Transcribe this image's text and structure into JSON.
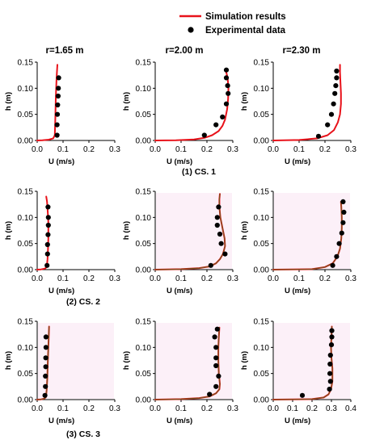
{
  "legend": {
    "simulation": "Simulation results",
    "experimental": "Experimental data"
  },
  "column_titles": [
    "r=1.65 m",
    "r=2.00 m",
    "r=2.30 m"
  ],
  "row_captions": [
    "(1) CS. 1",
    "(2) CS. 2",
    "(3) CS. 3"
  ],
  "colors": {
    "simulation": "#e8121a",
    "simulation_overlay": "#6b5a1e",
    "experimental": "#000000",
    "band": "#f9e4f2"
  },
  "chart_data": [
    {
      "type": "scatter",
      "row": 0,
      "col": 0,
      "overlay": false,
      "band": false,
      "xlabel": "U (m/s)",
      "ylabel": "h (m)",
      "xlim": [
        0,
        0.3
      ],
      "ylim": [
        0,
        0.15
      ],
      "xticks": [
        "0.0",
        "0.1",
        "0.2",
        "0.3"
      ],
      "yticks": [
        "0.00",
        "0.05",
        "0.10",
        "0.15"
      ],
      "series": [
        {
          "name": "Simulation results",
          "kind": "line",
          "x": [
            0.0,
            0.02,
            0.045,
            0.062,
            0.068,
            0.07,
            0.072,
            0.075,
            0.078
          ],
          "y": [
            0.0,
            0.0005,
            0.0015,
            0.004,
            0.01,
            0.04,
            0.08,
            0.12,
            0.145
          ]
        },
        {
          "name": "Experimental data",
          "kind": "scatter",
          "x": [
            0.083,
            0.082,
            0.081,
            0.079,
            0.078,
            0.077,
            0.077
          ],
          "y": [
            0.12,
            0.1,
            0.085,
            0.068,
            0.05,
            0.03,
            0.01
          ]
        }
      ]
    },
    {
      "type": "scatter",
      "row": 0,
      "col": 1,
      "overlay": false,
      "band": false,
      "xlabel": "U (m/s)",
      "ylabel": "h (m)",
      "xlim": [
        0,
        0.3
      ],
      "ylim": [
        0,
        0.15
      ],
      "xticks": [
        "0.0",
        "0.1",
        "0.2",
        "0.3"
      ],
      "yticks": [
        "0.00",
        "0.05",
        "0.10",
        "0.15"
      ],
      "series": [
        {
          "name": "Simulation results",
          "kind": "line",
          "x": [
            0.0,
            0.08,
            0.15,
            0.19,
            0.22,
            0.245,
            0.26,
            0.27,
            0.278,
            0.282,
            0.283,
            0.28,
            0.275,
            0.27
          ],
          "y": [
            0.0,
            0.0005,
            0.002,
            0.005,
            0.01,
            0.018,
            0.028,
            0.04,
            0.06,
            0.08,
            0.1,
            0.12,
            0.13,
            0.135
          ]
        },
        {
          "name": "Experimental data",
          "kind": "scatter",
          "x": [
            0.19,
            0.235,
            0.26,
            0.275,
            0.282,
            0.28,
            0.275,
            0.275
          ],
          "y": [
            0.01,
            0.03,
            0.045,
            0.07,
            0.09,
            0.105,
            0.12,
            0.135
          ]
        }
      ]
    },
    {
      "type": "scatter",
      "row": 0,
      "col": 2,
      "overlay": false,
      "band": false,
      "xlabel": "U (m/s)",
      "ylabel": "h (m)",
      "xlim": [
        0,
        0.3
      ],
      "ylim": [
        0,
        0.15
      ],
      "xticks": [
        "0.0",
        "0.1",
        "0.2",
        "0.3"
      ],
      "yticks": [
        "0.00",
        "0.05",
        "0.10",
        "0.15"
      ],
      "series": [
        {
          "name": "Simulation results",
          "kind": "line",
          "x": [
            0.0,
            0.1,
            0.17,
            0.21,
            0.235,
            0.25,
            0.258,
            0.262,
            0.262,
            0.26,
            0.258,
            0.258
          ],
          "y": [
            0.0,
            0.001,
            0.004,
            0.01,
            0.02,
            0.035,
            0.05,
            0.07,
            0.09,
            0.11,
            0.13,
            0.145
          ]
        },
        {
          "name": "Experimental data",
          "kind": "scatter",
          "x": [
            0.175,
            0.21,
            0.225,
            0.233,
            0.238,
            0.242,
            0.245,
            0.245
          ],
          "y": [
            0.008,
            0.03,
            0.05,
            0.07,
            0.09,
            0.105,
            0.12,
            0.133
          ]
        }
      ]
    },
    {
      "type": "scatter",
      "row": 1,
      "col": 0,
      "overlay": false,
      "band": false,
      "xlabel": "U (m/s)",
      "ylabel": "h (m)",
      "xlim": [
        0,
        0.3
      ],
      "ylim": [
        0,
        0.15
      ],
      "xticks": [
        "0.0",
        "0.1",
        "0.2",
        "0.3"
      ],
      "yticks": [
        "0.00",
        "0.05",
        "0.10",
        "0.15"
      ],
      "series": [
        {
          "name": "Simulation results",
          "kind": "line",
          "x": [
            0.0,
            0.015,
            0.03,
            0.037,
            0.04,
            0.042,
            0.043,
            0.043,
            0.041,
            0.038,
            0.035
          ],
          "y": [
            0.0,
            0.0005,
            0.002,
            0.005,
            0.02,
            0.04,
            0.06,
            0.09,
            0.11,
            0.13,
            0.14
          ]
        },
        {
          "name": "Experimental data",
          "kind": "scatter",
          "x": [
            0.038,
            0.04,
            0.04,
            0.042,
            0.043,
            0.043,
            0.042
          ],
          "y": [
            0.008,
            0.03,
            0.048,
            0.067,
            0.085,
            0.1,
            0.12
          ]
        }
      ]
    },
    {
      "type": "scatter",
      "row": 1,
      "col": 1,
      "overlay": true,
      "band": true,
      "xlabel": "U (m/s)",
      "ylabel": "h (m)",
      "xlim": [
        0,
        0.3
      ],
      "ylim": [
        0,
        0.15
      ],
      "xticks": [
        "0.0",
        "0.1",
        "0.2",
        "0.3"
      ],
      "yticks": [
        "0.00",
        "0.05",
        "0.10",
        "0.15"
      ],
      "series": [
        {
          "name": "Simulation results",
          "kind": "line",
          "x": [
            0.0,
            0.1,
            0.17,
            0.21,
            0.235,
            0.25,
            0.262,
            0.27,
            0.268,
            0.26,
            0.252,
            0.248,
            0.248,
            0.25
          ],
          "y": [
            0.0,
            0.001,
            0.003,
            0.006,
            0.012,
            0.02,
            0.03,
            0.045,
            0.06,
            0.08,
            0.1,
            0.12,
            0.135,
            0.145
          ]
        },
        {
          "name": "Experimental data",
          "kind": "scatter",
          "x": [
            0.215,
            0.27,
            0.255,
            0.25,
            0.24,
            0.24,
            0.245
          ],
          "y": [
            0.008,
            0.03,
            0.05,
            0.068,
            0.085,
            0.1,
            0.12
          ]
        }
      ]
    },
    {
      "type": "scatter",
      "row": 1,
      "col": 2,
      "overlay": true,
      "band": true,
      "xlabel": "U (m/s)",
      "ylabel": "h (m)",
      "xlim": [
        0,
        0.3
      ],
      "ylim": [
        0,
        0.15
      ],
      "xticks": [
        "0.0",
        "0.1",
        "0.2",
        "0.3"
      ],
      "yticks": [
        "0.00",
        "0.05",
        "0.10",
        "0.15"
      ],
      "series": [
        {
          "name": "Simulation results",
          "kind": "line",
          "x": [
            0.0,
            0.15,
            0.2,
            0.23,
            0.248,
            0.258,
            0.263,
            0.265,
            0.265,
            0.263,
            0.262
          ],
          "y": [
            0.0,
            0.001,
            0.005,
            0.012,
            0.025,
            0.04,
            0.06,
            0.08,
            0.1,
            0.12,
            0.13
          ]
        },
        {
          "name": "Experimental data",
          "kind": "scatter",
          "x": [
            0.23,
            0.245,
            0.255,
            0.265,
            0.27,
            0.273,
            0.27
          ],
          "y": [
            0.008,
            0.025,
            0.05,
            0.07,
            0.09,
            0.11,
            0.13
          ]
        }
      ]
    },
    {
      "type": "scatter",
      "row": 2,
      "col": 0,
      "overlay": true,
      "band": true,
      "xlabel": "U (m/s)",
      "ylabel": "h (m)",
      "xlim": [
        0,
        0.3
      ],
      "ylim": [
        0,
        0.15
      ],
      "xticks": [
        "0.0",
        "0.1",
        "0.2",
        "0.3"
      ],
      "yticks": [
        "0.00",
        "0.05",
        "0.10",
        "0.15"
      ],
      "series": [
        {
          "name": "Simulation results",
          "kind": "line",
          "x": [
            0.0,
            0.015,
            0.028,
            0.034,
            0.037,
            0.039,
            0.041,
            0.043,
            0.045,
            0.046
          ],
          "y": [
            0.0,
            0.0005,
            0.002,
            0.005,
            0.02,
            0.04,
            0.07,
            0.1,
            0.125,
            0.14
          ]
        },
        {
          "name": "Experimental data",
          "kind": "scatter",
          "x": [
            0.03,
            0.032,
            0.032,
            0.033,
            0.033,
            0.034,
            0.034
          ],
          "y": [
            0.008,
            0.025,
            0.045,
            0.063,
            0.08,
            0.1,
            0.12
          ]
        }
      ]
    },
    {
      "type": "scatter",
      "row": 2,
      "col": 1,
      "overlay": true,
      "band": true,
      "xlabel": "U (m/s)",
      "ylabel": "h (m)",
      "xlim": [
        0,
        0.3
      ],
      "ylim": [
        0,
        0.15
      ],
      "xticks": [
        "0.0",
        "0.1",
        "0.2",
        "0.3"
      ],
      "yticks": [
        "0.00",
        "0.05",
        "0.10",
        "0.15"
      ],
      "series": [
        {
          "name": "Simulation results",
          "kind": "line",
          "x": [
            0.0,
            0.1,
            0.17,
            0.21,
            0.235,
            0.248,
            0.25,
            0.246,
            0.244,
            0.244,
            0.246,
            0.248
          ],
          "y": [
            0.0,
            0.001,
            0.003,
            0.006,
            0.012,
            0.02,
            0.03,
            0.05,
            0.075,
            0.1,
            0.12,
            0.138
          ]
        },
        {
          "name": "Experimental data",
          "kind": "scatter",
          "x": [
            0.21,
            0.235,
            0.245,
            0.235,
            0.235,
            0.235,
            0.23,
            0.24
          ],
          "y": [
            0.01,
            0.025,
            0.045,
            0.065,
            0.08,
            0.1,
            0.12,
            0.135
          ]
        }
      ]
    },
    {
      "type": "scatter",
      "row": 2,
      "col": 2,
      "overlay": true,
      "band": true,
      "xlabel": "U (m/s)",
      "ylabel": "h (m)",
      "xlim": [
        0,
        0.4
      ],
      "ylim": [
        0,
        0.15
      ],
      "xticks": [
        "0.0",
        "0.1",
        "0.2",
        "0.3",
        "0.4"
      ],
      "yticks": [
        "0.00",
        "0.05",
        "0.10",
        "0.15"
      ],
      "series": [
        {
          "name": "Simulation results",
          "kind": "line",
          "x": [
            0.0,
            0.2,
            0.26,
            0.285,
            0.298,
            0.305,
            0.305,
            0.3,
            0.298,
            0.3,
            0.302
          ],
          "y": [
            0.0,
            0.001,
            0.004,
            0.01,
            0.02,
            0.035,
            0.06,
            0.08,
            0.1,
            0.12,
            0.14
          ]
        },
        {
          "name": "Experimental data",
          "kind": "scatter",
          "x": [
            0.15,
            0.29,
            0.295,
            0.292,
            0.293,
            0.295,
            0.3,
            0.302,
            0.302
          ],
          "y": [
            0.008,
            0.02,
            0.035,
            0.05,
            0.068,
            0.085,
            0.105,
            0.12,
            0.132
          ]
        }
      ]
    }
  ]
}
